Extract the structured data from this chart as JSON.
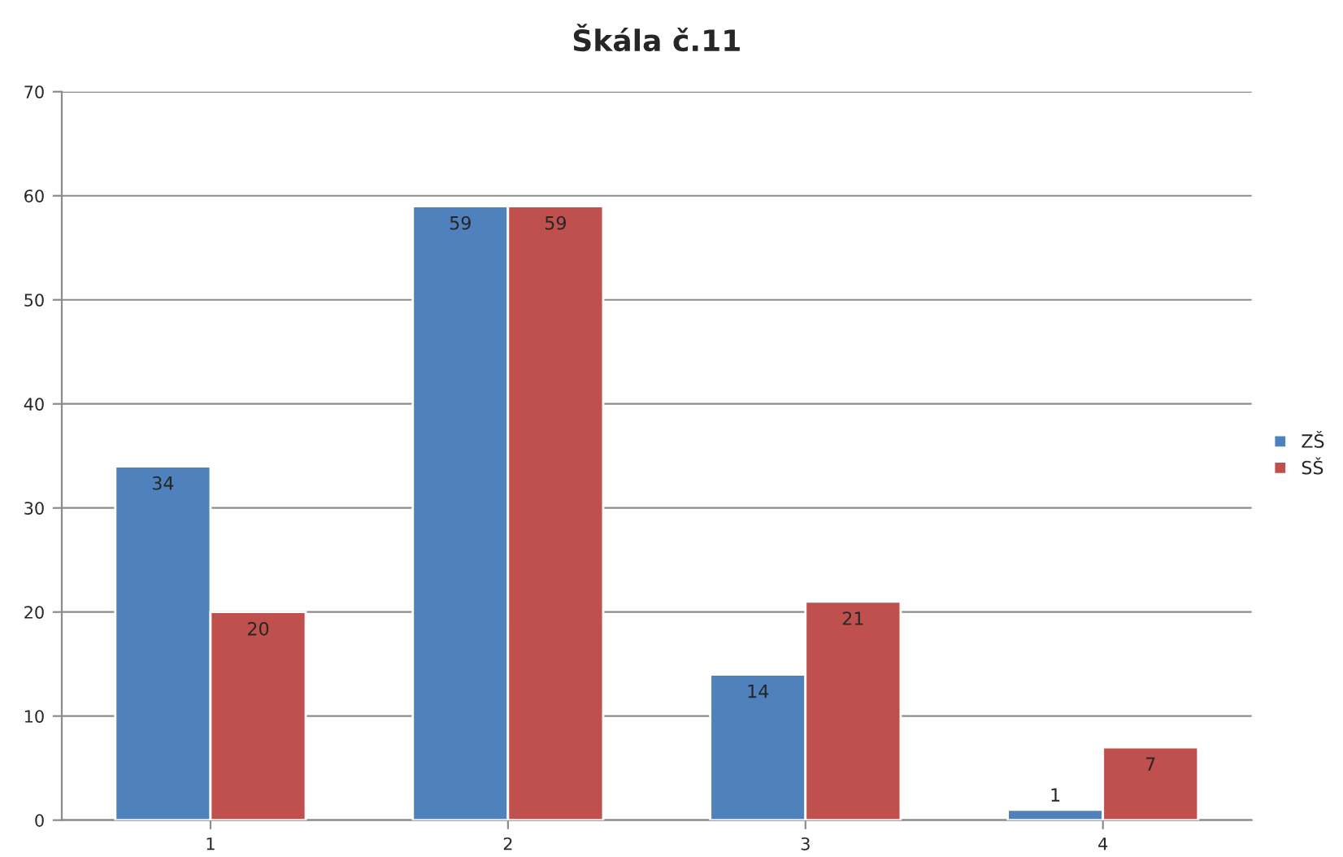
{
  "chart_data": {
    "type": "bar",
    "title": "Škála č.11",
    "categories": [
      "1",
      "2",
      "3",
      "4"
    ],
    "series": [
      {
        "name": "ZŠ",
        "color": "#4f81bd",
        "values": [
          34,
          59,
          14,
          1
        ]
      },
      {
        "name": "SŠ",
        "color": "#c0504d",
        "values": [
          20,
          59,
          21,
          7
        ]
      }
    ],
    "ylim": [
      0,
      70
    ],
    "yticks": [
      0,
      10,
      20,
      30,
      40,
      50,
      60,
      70
    ],
    "grid": "y",
    "legend": "right",
    "data_labels": true
  }
}
